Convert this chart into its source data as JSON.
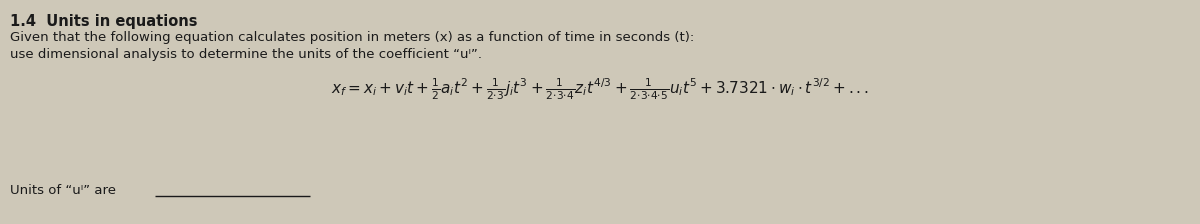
{
  "title": "1.4  Units in equations",
  "line1": "Given that the following equation calculates position in meters (x) as a function of time in seconds (t):",
  "line2": "use dimensional analysis to determine the units of the coefficient “uᴵ”.",
  "footer_text": "Units of “uᴵ” are",
  "bg_color": "#cec8b8",
  "text_color": "#1a1a1a",
  "title_fontsize": 10.5,
  "body_fontsize": 9.5,
  "eq_fontsize": 11,
  "footer_fontsize": 9.5
}
